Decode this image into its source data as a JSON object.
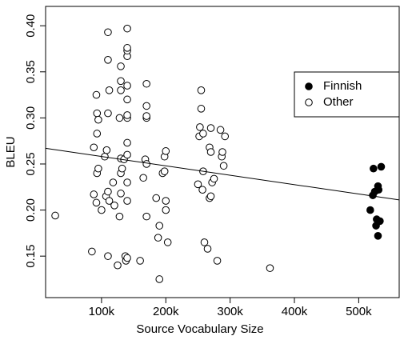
{
  "chart_data": {
    "type": "scatter",
    "x_label": "Source Vocabulary Size",
    "y_label": "BLEU",
    "xlim": [
      13000,
      563000
    ],
    "ylim": [
      0.105,
      0.421
    ],
    "xticks": [
      {
        "value": 100000,
        "label": "100k"
      },
      {
        "value": 200000,
        "label": "200k"
      },
      {
        "value": 300000,
        "label": "300k"
      },
      {
        "value": 400000,
        "label": "400k"
      },
      {
        "value": 500000,
        "label": "500k"
      }
    ],
    "yticks": [
      0.15,
      {
        "value": 0.2,
        "label": "0.20"
      },
      0.25,
      {
        "value": 0.3,
        "label": "0.30"
      },
      0.35,
      {
        "value": 0.4,
        "label": "0.40"
      }
    ],
    "legend_position": "topright",
    "series": [
      {
        "name": "Finnish",
        "color": "#000000",
        "x": [
          518000,
          523000,
          522000,
          525000,
          528000,
          527000,
          530000,
          531000,
          530000,
          533000,
          535000
        ],
        "y": [
          0.2,
          0.245,
          0.216,
          0.22,
          0.19,
          0.183,
          0.226,
          0.222,
          0.172,
          0.188,
          0.247
        ]
      },
      {
        "name": "Other",
        "color": "#ffffff",
        "x": [
          28000,
          85000,
          88000,
          92000,
          93000,
          95000,
          93000,
          93000,
          95000,
          92000,
          88000,
          100000,
          105000,
          107000,
          108000,
          110000,
          112000,
          110000,
          110000,
          112000,
          110000,
          110000,
          118000,
          120000,
          125000,
          128000,
          130000,
          130000,
          130000,
          128000,
          130000,
          130000,
          130000,
          132000,
          135000,
          137000,
          138000,
          140000,
          140000,
          140000,
          140000,
          140000,
          140000,
          140000,
          140000,
          140000,
          140000,
          140000,
          140000,
          140000,
          160000,
          165000,
          168000,
          170000,
          170000,
          170000,
          170000,
          170000,
          170000,
          185000,
          188000,
          190000,
          190000,
          195000,
          198000,
          198000,
          200000,
          200000,
          200000,
          203000,
          250000,
          252000,
          253000,
          255000,
          255000,
          257000,
          258000,
          258000,
          260000,
          265000,
          268000,
          268000,
          270000,
          270000,
          270000,
          272000,
          275000,
          280000,
          285000,
          287000,
          288000,
          290000,
          292000,
          362000
        ],
        "y": [
          0.194,
          0.155,
          0.217,
          0.208,
          0.24,
          0.245,
          0.283,
          0.305,
          0.298,
          0.325,
          0.268,
          0.2,
          0.258,
          0.215,
          0.265,
          0.22,
          0.21,
          0.15,
          0.305,
          0.33,
          0.363,
          0.393,
          0.23,
          0.205,
          0.14,
          0.193,
          0.218,
          0.24,
          0.256,
          0.3,
          0.33,
          0.34,
          0.356,
          0.245,
          0.255,
          0.15,
          0.145,
          0.148,
          0.21,
          0.23,
          0.26,
          0.273,
          0.3,
          0.303,
          0.32,
          0.335,
          0.367,
          0.373,
          0.376,
          0.397,
          0.145,
          0.235,
          0.255,
          0.193,
          0.25,
          0.3,
          0.302,
          0.313,
          0.337,
          0.213,
          0.17,
          0.183,
          0.125,
          0.24,
          0.242,
          0.258,
          0.21,
          0.2,
          0.264,
          0.165,
          0.228,
          0.28,
          0.29,
          0.31,
          0.33,
          0.222,
          0.242,
          0.283,
          0.165,
          0.158,
          0.213,
          0.268,
          0.289,
          0.263,
          0.215,
          0.23,
          0.234,
          0.145,
          0.287,
          0.258,
          0.263,
          0.248,
          0.28,
          0.137
        ]
      }
    ],
    "trend_line": {
      "x": [
        13000,
        563000
      ],
      "y": [
        0.267,
        0.211
      ]
    }
  }
}
